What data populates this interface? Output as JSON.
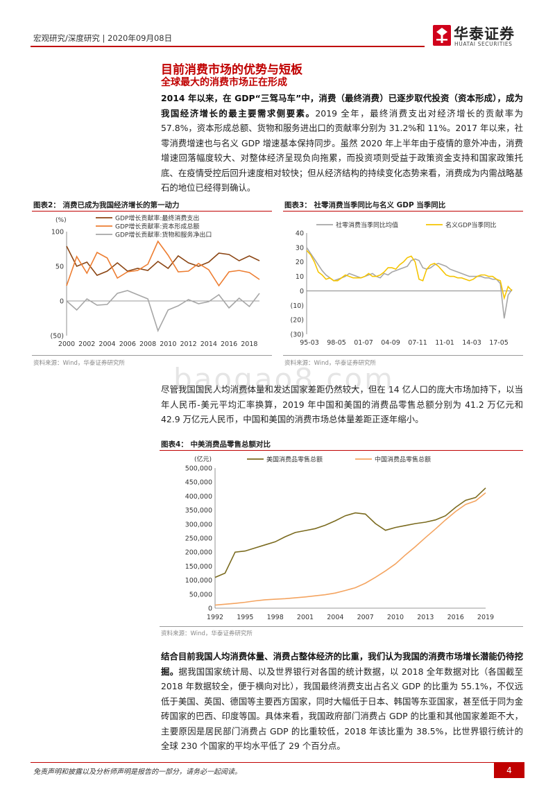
{
  "header": {
    "meta": "宏观研究/深度研究 | 2020年09月08日",
    "logo_cn": "华泰证券",
    "logo_en": "HUATAI SECURITIES"
  },
  "section": {
    "title": "目前消费市场的优势与短板",
    "subtitle": "全球最大的消费市场正在形成"
  },
  "paragraphs": {
    "p1_bold": "2014 年以来，在 GDP“三驾马车”中，消费（最终消费）已逐步取代投资（资本形成），成为我国经济增长的最主要需求侧要素。",
    "p1_rest": "2019 全年，最终消费支出对经济增长的贡献率为 57.8%，资本形成总额、货物和服务进出口的贡献率分别为 31.2%和 11%。2017 年以来，社零消费增速也与名义 GDP 增速基本保持同步。虽然 2020 年上半年由于疫情的意外冲击，消费增速回落幅度较大、对整体经济呈现负向拖累，而投资项则受益于政策资金支持和国家政策托底、在疫情受控后回升速度相对较快；但从经济结构的持续变化态势来看，消费成为内需战略基石的地位已经得到确认。",
    "p2": "尽管我国国民人均消费体量和发达国家差距仍然较大，但在 14 亿人口的庞大市场加持下，以当年人民币-美元平均汇率换算，2019 年中国和美国的消费品零售总额分别为 41.2 万亿元和 42.9 万亿元人民币，中国和美国的消费市场总体量差距正逐年缩小。",
    "p3_bold": "结合目前我国人均消费体量、消费占整体经济的比重，我们认为我国的消费市场增长潜能仍待挖掘。",
    "p3_rest": "据我国国家统计局、以及世界银行对各国的统计数据，以 2018 全年数据对比（各国截至 2018 年数据较全，便于横向对比），我国最终消费支出占名义 GDP 的比重为 55.1%，不仅远低于美国、英国、德国等主要西方国家，同时大幅低于日本、韩国等东亚国家，甚至低于同为金砖国家的巴西、印度等国。具体来看，我国政府部门消费占 GDP 的比重和其他国家差距不大，主要原因是居民部门消费占 GDP 的比重较低，2018 年该比重为 38.5%，比世界银行统计的全球 230 个国家的平均水平低了 29 个百分点。"
  },
  "figures": {
    "fig2_title": "图表2：  消费已成为我国经济增长的第一动力",
    "fig3_title": "图表3：  社零消费当季同比与名义 GDP 当季同比",
    "fig4_title": "图表4：  中美消费品零售总额对比",
    "source": "资料来源：Wind，华泰证券研究所"
  },
  "chart_data": [
    {
      "type": "line",
      "ylabel": "(%)",
      "ylim": [
        -50,
        100
      ],
      "yticks": [
        "100",
        "50",
        "0",
        "(50)"
      ],
      "x": [
        2000,
        2001,
        2002,
        2003,
        2004,
        2005,
        2006,
        2007,
        2008,
        2009,
        2010,
        2011,
        2012,
        2013,
        2014,
        2015,
        2016,
        2017,
        2018,
        2019
      ],
      "xticks": [
        "2000",
        "2002",
        "2004",
        "2006",
        "2008",
        "2010",
        "2012",
        "2014",
        "2016",
        "2018"
      ],
      "series": [
        {
          "name": "GDP增长贡献率:最终消费支出",
          "color": "#8b4513",
          "values": [
            79,
            50,
            56,
            37,
            43,
            55,
            43,
            47,
            44,
            57,
            47,
            65,
            55,
            50,
            56,
            69,
            67,
            58,
            65,
            58
          ]
        },
        {
          "name": "GDP增长贡献率:资本形成总额",
          "color": "#ed7d31",
          "values": [
            22,
            64,
            40,
            70,
            62,
            33,
            42,
            44,
            53,
            86,
            66,
            42,
            43,
            54,
            45,
            22,
            42,
            44,
            41,
            31
          ]
        },
        {
          "name": "GDP增长贡献率:货物和服务净出口",
          "color": "#a6a6a6",
          "values": [
            0,
            -13,
            3,
            -6,
            -5,
            11,
            15,
            9,
            3,
            -43,
            -13,
            -7,
            2,
            -4,
            -1,
            9,
            -10,
            4,
            -8,
            11
          ]
        }
      ],
      "legend": "top"
    },
    {
      "type": "line",
      "ylim": [
        -30,
        40
      ],
      "yticks": [
        "40",
        "30",
        "20",
        "10",
        "0",
        "(10)",
        "(20)",
        "(30)"
      ],
      "xticks": [
        "95-03",
        "98-05",
        "01-07",
        "04-09",
        "07-11",
        "11-01",
        "14-03",
        "17-05"
      ],
      "series": [
        {
          "name": "社零消费当季同比均值",
          "color": "#a6a6a6",
          "values": [
            30,
            26,
            22,
            18,
            14,
            11,
            9,
            7,
            8,
            9,
            10,
            12,
            11,
            10,
            9,
            10,
            11,
            12,
            10,
            9,
            12,
            11,
            13,
            14,
            15,
            16,
            17,
            21,
            22,
            21,
            16,
            15,
            16,
            18,
            19,
            18,
            17,
            15,
            14,
            13,
            12,
            11,
            10,
            10,
            10,
            10,
            9,
            9,
            8,
            8,
            5,
            -19,
            -3,
            1
          ]
        },
        {
          "name": "名义GDP当季同比",
          "color": "#f5c400",
          "values": [
            28,
            25,
            20,
            13,
            11,
            8,
            9,
            7,
            7,
            9,
            11,
            10,
            9,
            9,
            9,
            10,
            12,
            10,
            10,
            11,
            13,
            16,
            16,
            15,
            18,
            20,
            23,
            24,
            20,
            8,
            7,
            15,
            18,
            19,
            17,
            14,
            11,
            10,
            10,
            9,
            9,
            8,
            7,
            8,
            10,
            11,
            11,
            10,
            10,
            8,
            7,
            -5,
            3,
            0
          ]
        }
      ],
      "legend": "top"
    },
    {
      "type": "line",
      "ylabel": "(亿元)",
      "ylim": [
        0,
        500000
      ],
      "yticks": [
        "500,000",
        "450,000",
        "400,000",
        "350,000",
        "300,000",
        "250,000",
        "200,000",
        "150,000",
        "100,000",
        "50,000",
        "0"
      ],
      "x": [
        1992,
        1993,
        1994,
        1995,
        1996,
        1997,
        1998,
        1999,
        2000,
        2001,
        2002,
        2003,
        2004,
        2005,
        2006,
        2007,
        2008,
        2009,
        2010,
        2011,
        2012,
        2013,
        2014,
        2015,
        2016,
        2017,
        2018,
        2019
      ],
      "xticks": [
        "1992",
        "1995",
        "1998",
        "2001",
        "2004",
        "2007",
        "2010",
        "2013",
        "2016",
        "2019"
      ],
      "series": [
        {
          "name": "美国消费品零售总额",
          "color": "#7a6a1e",
          "values": [
            110000,
            125000,
            200000,
            204000,
            215000,
            226000,
            237000,
            255000,
            270000,
            277000,
            284000,
            296000,
            312000,
            330000,
            340000,
            336000,
            302000,
            278000,
            288000,
            295000,
            302000,
            307000,
            315000,
            330000,
            360000,
            385000,
            395000,
            429000
          ]
        },
        {
          "name": "中国消费品零售总额",
          "color": "#f4a460",
          "values": [
            11000,
            14000,
            17000,
            21000,
            26000,
            30000,
            32000,
            34000,
            37000,
            40000,
            44000,
            48000,
            54000,
            63000,
            73000,
            89000,
            110000,
            133000,
            158000,
            190000,
            220000,
            252000,
            283000,
            315000,
            345000,
            370000,
            383000,
            412000
          ]
        }
      ],
      "legend": "top"
    }
  ]
}
